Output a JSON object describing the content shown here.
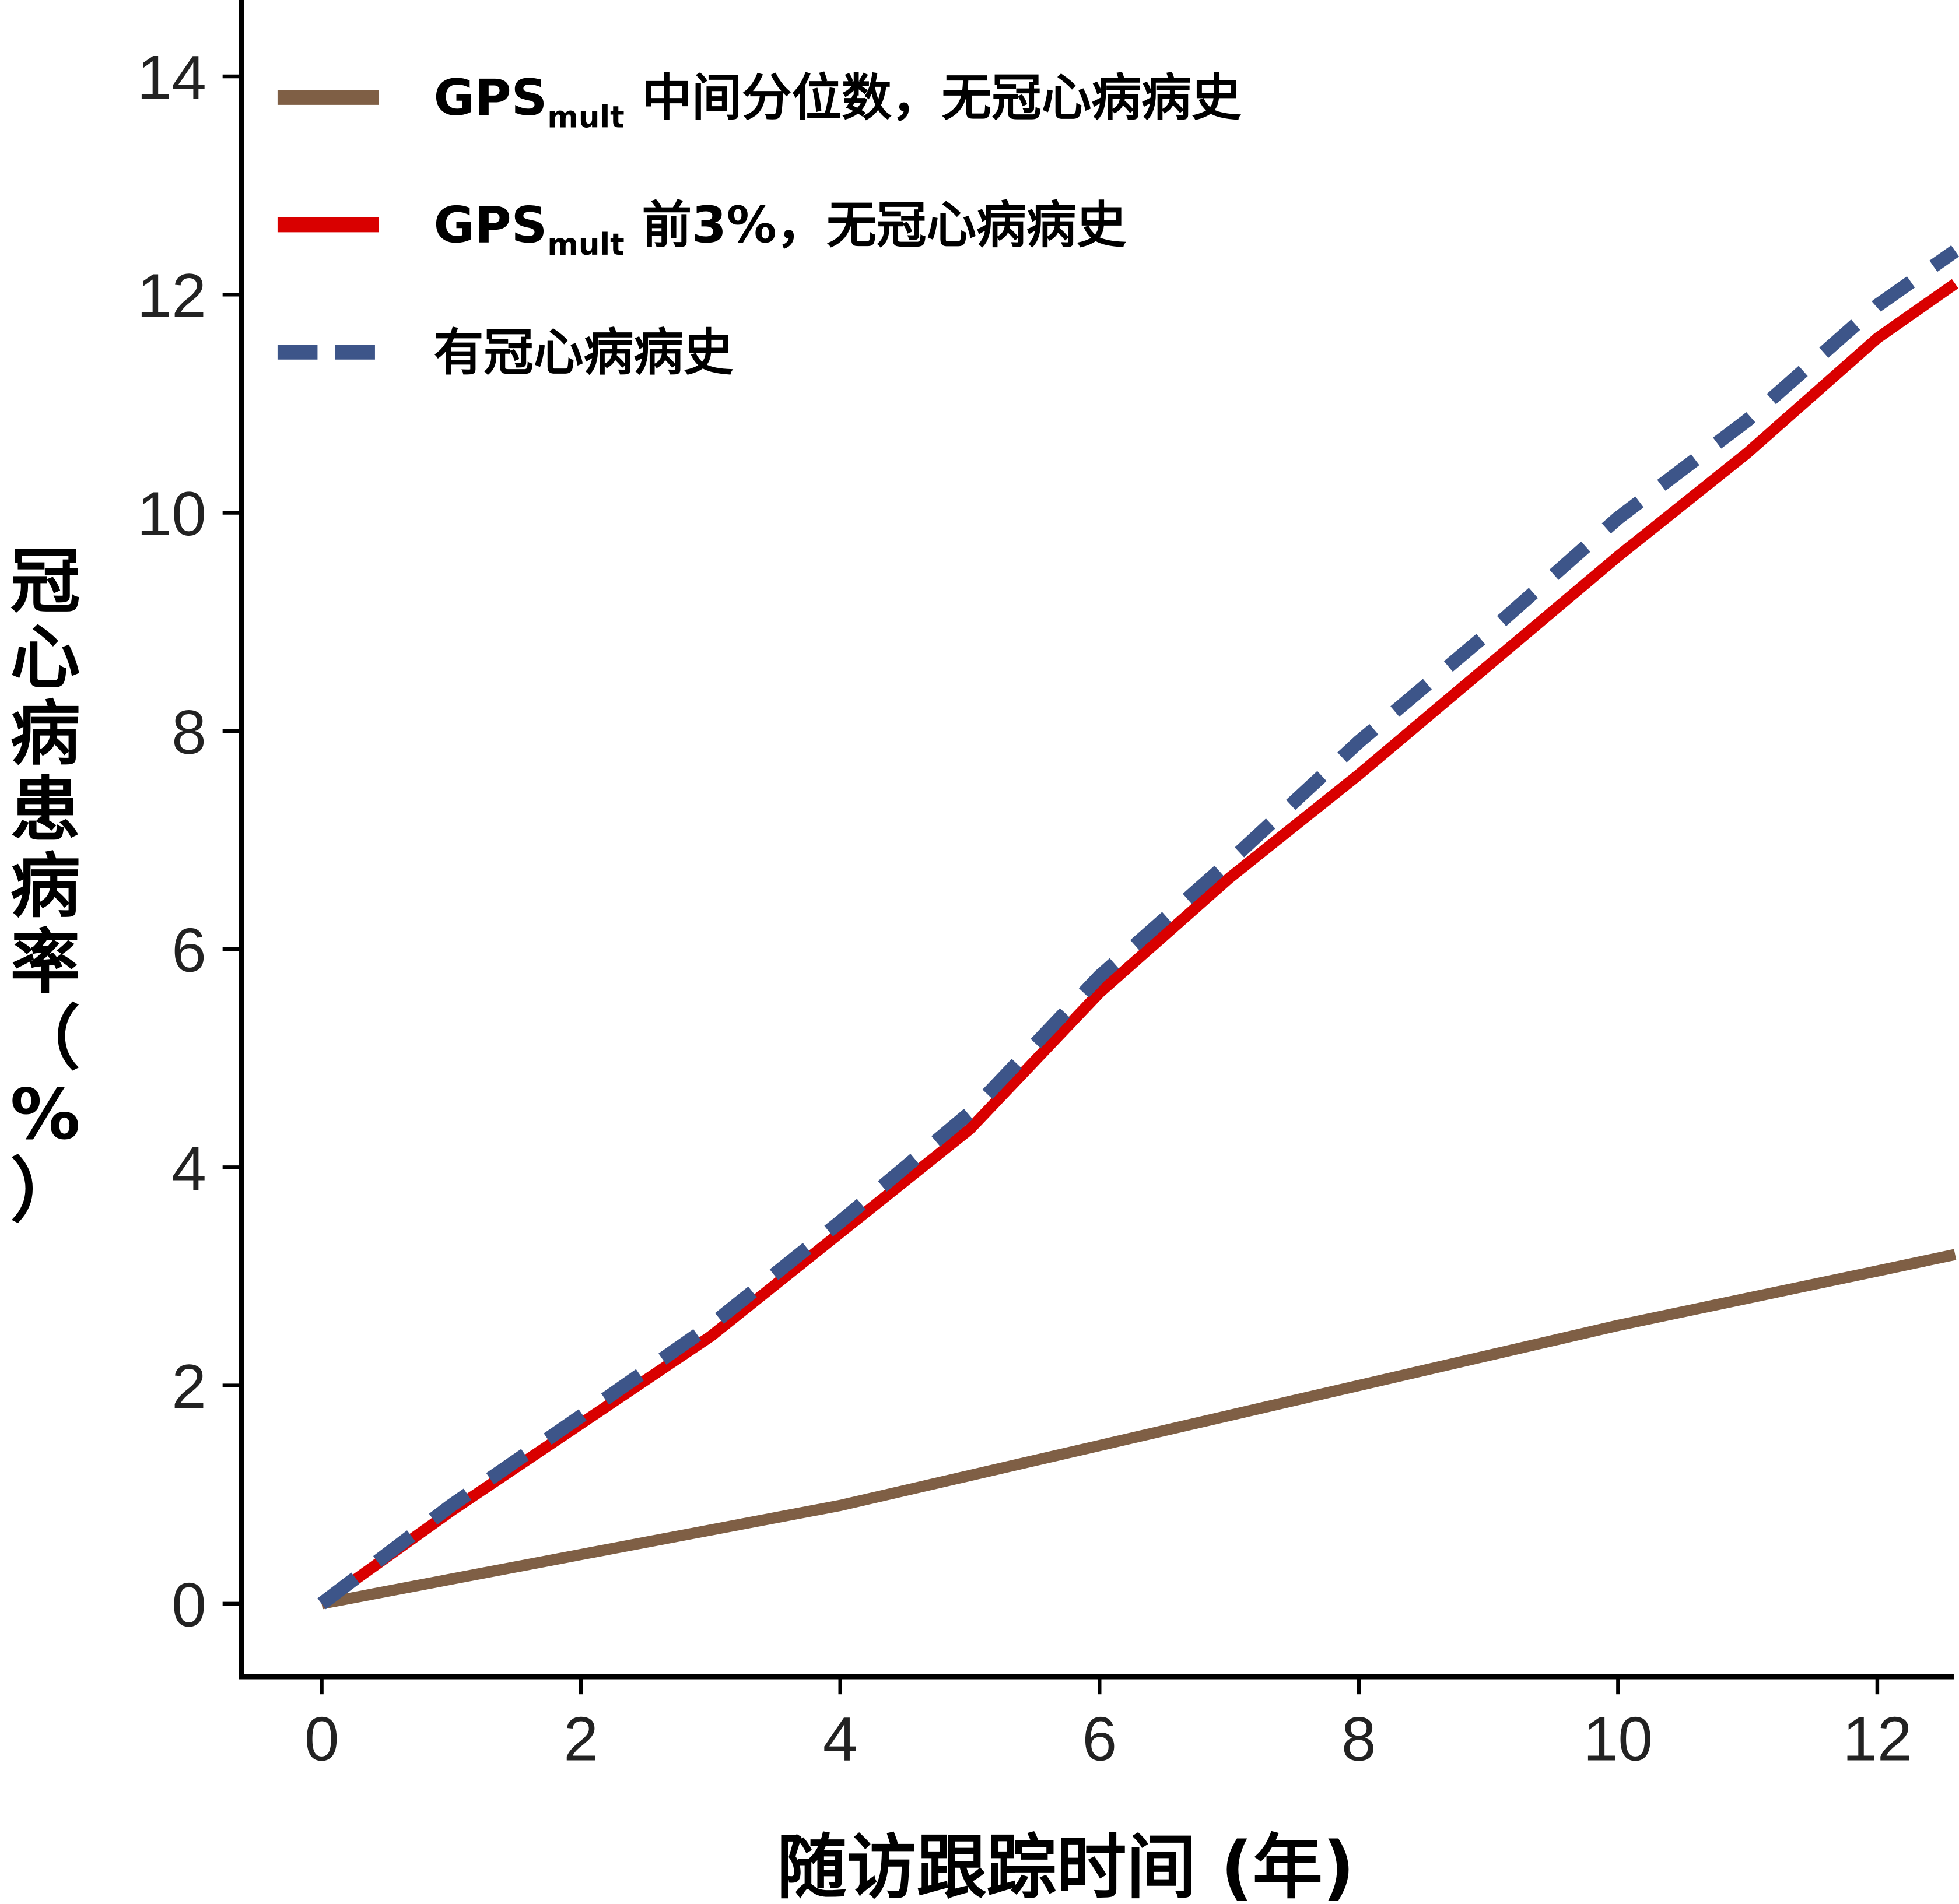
{
  "chart_data": {
    "type": "line",
    "title": "",
    "xlabel": "随访跟踪时间 (年)",
    "ylabel": "冠心病患病率（%）",
    "xlim": [
      -0.62,
      12.58
    ],
    "ylim": [
      -0.67,
      14.7
    ],
    "xticks": [
      0,
      2,
      4,
      6,
      8,
      10,
      12
    ],
    "yticks": [
      0,
      2,
      4,
      6,
      8,
      10,
      12,
      14
    ],
    "grid": false,
    "legend_position": "top-left",
    "series": [
      {
        "name_main": "GPS",
        "name_sub": "mult",
        "name_rest": " 中间分位数，无冠心病病史",
        "color": "#7f5f45",
        "style": "solid",
        "x": [
          0,
          2,
          4,
          6,
          8,
          10,
          12,
          12.6
        ],
        "y": [
          0,
          0.45,
          0.9,
          1.45,
          2.0,
          2.55,
          3.05,
          3.2
        ]
      },
      {
        "name_main": "GPS",
        "name_sub": "mult",
        "name_rest": " 前3%，无冠心病病史",
        "color": "#d90000",
        "style": "solid",
        "x": [
          0,
          1,
          2,
          3,
          4,
          5,
          6,
          7,
          8,
          9,
          10,
          11,
          12,
          12.6
        ],
        "y": [
          0,
          0.85,
          1.65,
          2.45,
          3.4,
          4.35,
          5.6,
          6.65,
          7.6,
          8.6,
          9.6,
          10.55,
          11.6,
          12.1
        ]
      },
      {
        "name_main": "",
        "name_sub": "",
        "name_rest": "有冠心病病史",
        "color": "#3d5589",
        "style": "dashed",
        "x": [
          0,
          1,
          2,
          3,
          4,
          5,
          6,
          7,
          8,
          9,
          10,
          11,
          12,
          12.6
        ],
        "y": [
          0,
          0.9,
          1.72,
          2.55,
          3.5,
          4.5,
          5.75,
          6.8,
          7.9,
          8.9,
          9.95,
          10.85,
          11.9,
          12.4
        ]
      }
    ]
  }
}
